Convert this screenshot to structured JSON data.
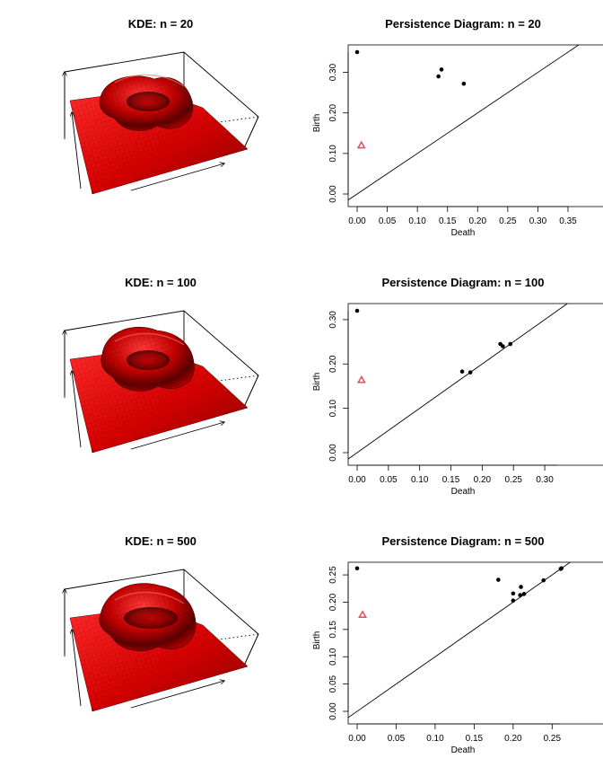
{
  "colors": {
    "surface_base": "#e00000",
    "surface_mid": "#b40000",
    "surface_shadow": "#400000",
    "point": "#000000",
    "triangle": "#df536b",
    "line": "#000000"
  },
  "kde_panels": [
    {
      "title": "KDE: n = 20"
    },
    {
      "title": "KDE: n = 100"
    },
    {
      "title": "KDE: n = 500"
    }
  ],
  "chart_data": [
    {
      "type": "scatter",
      "title": "Persistence Diagram: n = 20",
      "xlabel": "Death",
      "ylabel": "Birth",
      "xlim": [
        0,
        0.35
      ],
      "ylim": [
        0,
        0.35
      ],
      "xticks": [
        "0.00",
        "0.05",
        "0.10",
        "0.15",
        "0.20",
        "0.25",
        "0.30",
        "0.35"
      ],
      "yticks": [
        "0.00",
        "0.10",
        "0.20",
        "0.30"
      ],
      "diagonal": true,
      "series": [
        {
          "marker": "circle",
          "points": [
            [
              0.0,
              0.35
            ],
            [
              0.135,
              0.29
            ],
            [
              0.14,
              0.307
            ],
            [
              0.177,
              0.272
            ]
          ]
        },
        {
          "marker": "triangle",
          "points": [
            [
              0.007,
              0.12
            ]
          ]
        }
      ]
    },
    {
      "type": "scatter",
      "title": "Persistence Diagram: n = 100",
      "xlabel": "Death",
      "ylabel": "Birth",
      "xlim": [
        0,
        0.32
      ],
      "ylim": [
        0,
        0.32
      ],
      "xticks": [
        "0.00",
        "0.05",
        "0.10",
        "0.15",
        "0.20",
        "0.25",
        "0.30"
      ],
      "yticks": [
        "0.00",
        "0.10",
        "0.20",
        "0.30"
      ],
      "diagonal": true,
      "series": [
        {
          "marker": "circle",
          "points": [
            [
              0.0,
              0.32
            ],
            [
              0.168,
              0.183
            ],
            [
              0.181,
              0.181
            ],
            [
              0.229,
              0.245
            ],
            [
              0.233,
              0.24
            ],
            [
              0.245,
              0.245
            ]
          ]
        },
        {
          "marker": "triangle",
          "points": [
            [
              0.007,
              0.164
            ]
          ]
        }
      ]
    },
    {
      "type": "scatter",
      "title": "Persistence Diagram: n = 500",
      "xlabel": "Death",
      "ylabel": "Birth",
      "xlim": [
        0,
        0.26
      ],
      "ylim": [
        0,
        0.26
      ],
      "xticks": [
        "0.00",
        "0.05",
        "0.10",
        "0.15",
        "0.20",
        "0.25"
      ],
      "yticks": [
        "0.00",
        "0.05",
        "0.10",
        "0.15",
        "0.20",
        "0.25"
      ],
      "diagonal": true,
      "series": [
        {
          "marker": "circle",
          "points": [
            [
              0.0,
              0.262
            ],
            [
              0.181,
              0.241
            ],
            [
              0.2,
              0.216
            ],
            [
              0.2,
              0.203
            ],
            [
              0.209,
              0.213
            ],
            [
              0.21,
              0.228
            ],
            [
              0.214,
              0.215
            ],
            [
              0.239,
              0.24
            ],
            [
              0.261,
              0.261
            ],
            [
              0.262,
              0.262
            ]
          ]
        },
        {
          "marker": "triangle",
          "points": [
            [
              0.007,
              0.177
            ]
          ]
        }
      ]
    }
  ]
}
